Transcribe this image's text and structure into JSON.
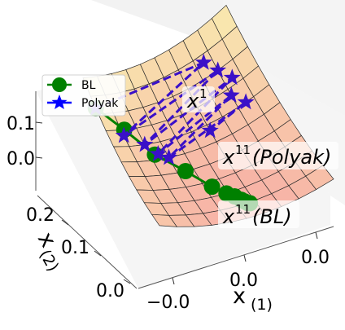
{
  "chart_data": {
    "type": "surface",
    "xlabel": "x",
    "xlabel_sub": "(1)",
    "ylabel": "x",
    "ylabel_sub": "(2)",
    "x_ticks": [
      "−0.0",
      "0.0",
      "0.0"
    ],
    "y_ticks": [
      "0.0",
      "0.1",
      "0.2"
    ],
    "z_ticks": [
      "0.0",
      "0.1"
    ],
    "legend": {
      "placement": "upper-left",
      "entries": [
        {
          "label": "BL",
          "marker": "circle",
          "color": "#008000"
        },
        {
          "label": "Polyak",
          "marker": "star",
          "color": "#0000ff"
        }
      ]
    },
    "annotations": [
      {
        "text": "x",
        "sup": "1",
        "suffix": ""
      },
      {
        "text": "x",
        "sup": "11",
        "suffix": "(Polyak)"
      },
      {
        "text": "x",
        "sup": "11",
        "suffix": "(BL)"
      }
    ],
    "series": [
      {
        "name": "BL",
        "color": "#008000",
        "linestyle": "solid",
        "marker": "circle",
        "points": [
          [
            0.0,
            0.25
          ],
          [
            0.12,
            0.21
          ],
          [
            0.23,
            0.16
          ],
          [
            0.35,
            0.12
          ],
          [
            0.44,
            0.08
          ],
          [
            0.49,
            0.06
          ],
          [
            0.52,
            0.05
          ],
          [
            0.54,
            0.04
          ],
          [
            0.55,
            0.035
          ],
          [
            0.56,
            0.03
          ],
          [
            0.57,
            0.028
          ]
        ]
      },
      {
        "name": "Polyak",
        "color": "#3a10c8",
        "linestyle": "dashed",
        "marker": "star",
        "points": [
          [
            0.0,
            0.25
          ],
          [
            0.75,
            0.26
          ],
          [
            0.1,
            0.2
          ],
          [
            0.8,
            0.24
          ],
          [
            0.2,
            0.18
          ],
          [
            0.85,
            0.22
          ],
          [
            0.25,
            0.16
          ],
          [
            0.8,
            0.2
          ],
          [
            0.3,
            0.15
          ],
          [
            0.85,
            0.18
          ],
          [
            0.6,
            0.17
          ]
        ]
      }
    ]
  },
  "colors": {
    "surface_low": "#f7b2a6",
    "surface_high": "#f9f5b0",
    "pane": "#f2f2f2",
    "bl": "#008000",
    "polyak": "#3a10c8"
  }
}
